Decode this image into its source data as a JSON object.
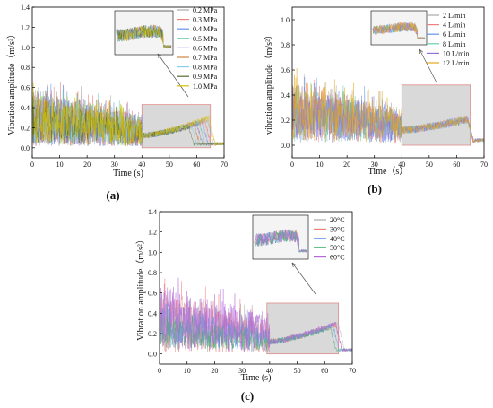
{
  "chart_data": [
    {
      "type": "line",
      "panel_label": "(a)",
      "xlabel": "Time (s)",
      "ylabel": "Vibration amplitude（m/s²）",
      "xlim": [
        0,
        70
      ],
      "ylim": [
        -0.1,
        1.4
      ],
      "xticks": [
        0,
        10,
        20,
        30,
        40,
        50,
        60,
        70
      ],
      "yticks": [
        0.0,
        0.2,
        0.4,
        0.6,
        0.8,
        1.0,
        1.2,
        1.4
      ],
      "legend_position": "top-right",
      "zoom_region": {
        "x": [
          40,
          65
        ],
        "y": [
          0.0,
          0.43
        ]
      },
      "series": [
        {
          "name": "0.2 MPa",
          "color": "#a9a9a9",
          "level": 0.3,
          "spread": 0.55,
          "bump_end": 64.0,
          "peak": 0.28
        },
        {
          "name": "0.3 MPa",
          "color": "#f08080",
          "level": 0.29,
          "spread": 0.52,
          "bump_end": 63.0,
          "peak": 0.27
        },
        {
          "name": "0.4 MPa",
          "color": "#6495ed",
          "level": 0.28,
          "spread": 0.5,
          "bump_end": 62.0,
          "peak": 0.26
        },
        {
          "name": "0.5 MPa",
          "color": "#66cdaa",
          "level": 0.28,
          "spread": 0.48,
          "bump_end": 61.0,
          "peak": 0.25
        },
        {
          "name": "0.6 MPa",
          "color": "#9370db",
          "level": 0.27,
          "spread": 0.46,
          "bump_end": 60.0,
          "peak": 0.24
        },
        {
          "name": "0.7 MPa",
          "color": "#cd853f",
          "level": 0.27,
          "spread": 0.44,
          "bump_end": 59.0,
          "peak": 0.23
        },
        {
          "name": "0.8 MPa",
          "color": "#87ceeb",
          "level": 0.26,
          "spread": 0.42,
          "bump_end": 58.0,
          "peak": 0.22
        },
        {
          "name": "0.9 MPa",
          "color": "#556b2f",
          "level": 0.26,
          "spread": 0.4,
          "bump_end": 57.0,
          "peak": 0.21
        },
        {
          "name": "1.0 MPa",
          "color": "#d4c200",
          "level": 0.28,
          "spread": 0.45,
          "bump_end": 64.5,
          "peak": 0.3
        }
      ]
    },
    {
      "type": "line",
      "panel_label": "(b)",
      "xlabel": "Time（s）",
      "ylabel": "vibration amplitude（m/s²）",
      "xlim": [
        0,
        70
      ],
      "ylim": [
        -0.1,
        1.1
      ],
      "xticks": [
        0,
        10,
        20,
        30,
        40,
        50,
        60,
        70
      ],
      "yticks": [
        0.0,
        0.2,
        0.4,
        0.6,
        0.8,
        1.0
      ],
      "legend_position": "top-right",
      "zoom_region": {
        "x": [
          40,
          65
        ],
        "y": [
          0.0,
          0.48
        ]
      },
      "series": [
        {
          "name": "2 L/min",
          "color": "#a9a9a9",
          "level": 0.26,
          "spread": 0.42,
          "bump_end": 64.0,
          "peak": 0.22
        },
        {
          "name": "4 L/min",
          "color": "#f08080",
          "level": 0.25,
          "spread": 0.4,
          "bump_end": 64.0,
          "peak": 0.21
        },
        {
          "name": "6 L/min",
          "color": "#6495ed",
          "level": 0.25,
          "spread": 0.42,
          "bump_end": 64.0,
          "peak": 0.22
        },
        {
          "name": "8 L/min",
          "color": "#66cdaa",
          "level": 0.24,
          "spread": 0.38,
          "bump_end": 64.0,
          "peak": 0.2
        },
        {
          "name": "10 L/min",
          "color": "#9370db",
          "level": 0.24,
          "spread": 0.36,
          "bump_end": 64.0,
          "peak": 0.2
        },
        {
          "name": "12 L/min",
          "color": "#e6a817",
          "level": 0.27,
          "spread": 0.44,
          "bump_end": 64.0,
          "peak": 0.21
        }
      ]
    },
    {
      "type": "line",
      "panel_label": "(c)",
      "xlabel": "Time (s)",
      "ylabel": "Vibration amplitude（m/s²）",
      "xlim": [
        0,
        70
      ],
      "ylim": [
        -0.1,
        1.4
      ],
      "xticks": [
        0,
        10,
        20,
        30,
        40,
        50,
        60,
        70
      ],
      "yticks": [
        0.0,
        0.2,
        0.4,
        0.6,
        0.8,
        1.0,
        1.2,
        1.4
      ],
      "legend_position": "top-right",
      "zoom_region": {
        "x": [
          39,
          65
        ],
        "y": [
          0.0,
          0.5
        ]
      },
      "series": [
        {
          "name": "20°C",
          "color": "#a9a9a9",
          "level": 0.3,
          "spread": 0.5,
          "bump_end": 65.0,
          "peak": 0.3
        },
        {
          "name": "30°C",
          "color": "#f08080",
          "level": 0.3,
          "spread": 0.55,
          "bump_end": 64.0,
          "peak": 0.29
        },
        {
          "name": "40°C",
          "color": "#6495ed",
          "level": 0.26,
          "spread": 0.4,
          "bump_end": 63.0,
          "peak": 0.28
        },
        {
          "name": "50°C",
          "color": "#3cb371",
          "level": 0.22,
          "spread": 0.3,
          "bump_end": 62.0,
          "peak": 0.26
        },
        {
          "name": "60°C",
          "color": "#b36bdb",
          "level": 0.36,
          "spread": 0.6,
          "bump_end": 64.0,
          "peak": 0.3
        }
      ]
    }
  ]
}
